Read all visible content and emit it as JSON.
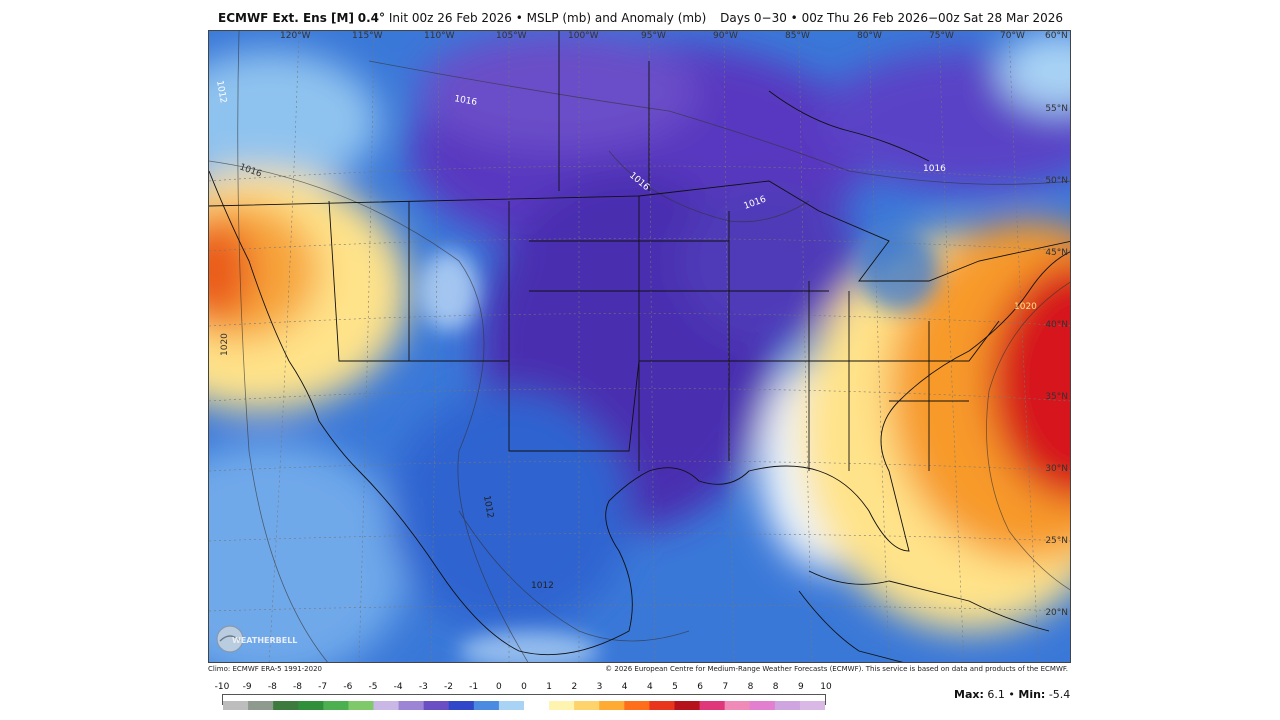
{
  "header": {
    "model": "ECMWF Ext. Ens [M]",
    "resolution": "0.4°",
    "init": "Init 00z 26 Feb 2026",
    "field": "• MSLP (mb) and Anomaly (mb)",
    "period": "Days 0−30 • 00z Thu 26 Feb 2026−00z Sat 28 Mar 2026"
  },
  "lon_labels": [
    "120°W",
    "115°W",
    "110°W",
    "105°W",
    "100°W",
    "95°W",
    "90°W",
    "85°W",
    "80°W",
    "75°W",
    "70°W",
    "60°N"
  ],
  "lat_labels": [
    "55°N",
    "50°N",
    "45°N",
    "40°N",
    "35°N",
    "30°N",
    "25°N",
    "20°N"
  ],
  "contour_labels": [
    "1012",
    "1016",
    "1016",
    "1016",
    "1016",
    "1016",
    "1020",
    "1020",
    "1012",
    "1012"
  ],
  "logo_text": "WEATHERBELL",
  "footer": {
    "climo": "Climo: ECMWF ERA-5 1991-2020",
    "copyright": "© 2026 European Centre for Medium-Range Weather Forecasts (ECMWF). This service is based on data and products of the ECMWF."
  },
  "colorbar": {
    "ticks": [
      "-10",
      "-9",
      "-8",
      "-8",
      "-7",
      "-6",
      "-5",
      "-4",
      "-3",
      "-2",
      "-1",
      "0",
      "0",
      "1",
      "2",
      "3",
      "4",
      "4",
      "5",
      "6",
      "7",
      "8",
      "8",
      "9",
      "10"
    ],
    "colors": [
      "#bdbdbd",
      "#8f9a8f",
      "#3d7a3d",
      "#2f8f3a",
      "#4caf50",
      "#7fc96a",
      "#c9b7e6",
      "#9c85d4",
      "#6a4fc4",
      "#2f47c8",
      "#4a8ae0",
      "#a9d3f5",
      "#ffffff",
      "#fff3b0",
      "#ffd36b",
      "#ffaa33",
      "#ff6e1a",
      "#e8351c",
      "#b5121b",
      "#e0367a",
      "#f08ab8",
      "#e27fcf",
      "#cfa5e0",
      "#d9b8e6"
    ]
  },
  "stats": {
    "max_label": "Max:",
    "max_value": "6.1",
    "sep": "•",
    "min_label": "Min:",
    "min_value": "-5.4"
  },
  "colors": {
    "strong_negative": "#4a2fb0",
    "negative": "#2c6fd6",
    "weak_negative": "#8fc3ef",
    "neutral": "#ffffff",
    "weak_positive": "#ffe38a",
    "positive": "#f79a2c",
    "strong_positive": "#d6141b"
  }
}
